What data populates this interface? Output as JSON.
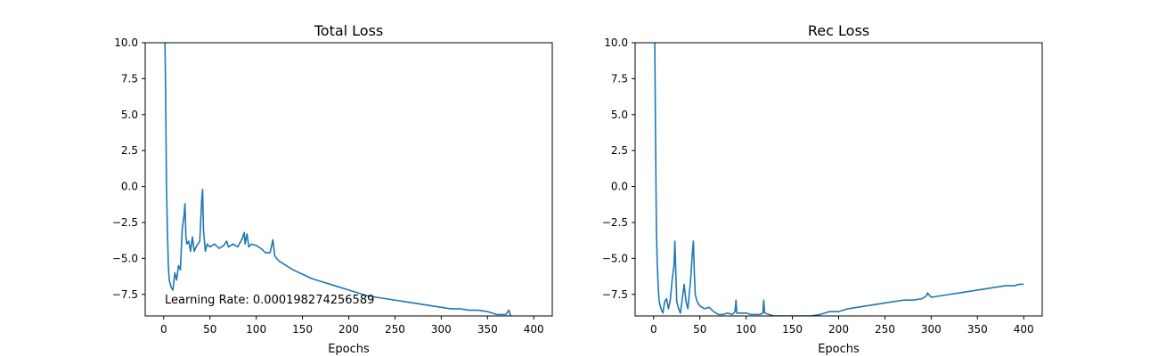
{
  "chart_data": [
    {
      "type": "line",
      "title": "Total Loss",
      "xlabel": "Epochs",
      "ylabel": "",
      "xlim": [
        -20,
        420
      ],
      "ylim": [
        -9,
        10
      ],
      "xticks": [
        0,
        50,
        100,
        150,
        200,
        250,
        300,
        350,
        400
      ],
      "yticks": [
        -7.5,
        -5.0,
        -2.5,
        0.0,
        2.5,
        5.0,
        7.5,
        10.0
      ],
      "xtick_labels": [
        "0",
        "50",
        "100",
        "150",
        "200",
        "250",
        "300",
        "350",
        "400"
      ],
      "ytick_labels": [
        "−7.5",
        "−5.0",
        "−2.5",
        "0.0",
        "2.5",
        "5.0",
        "7.5",
        "10.0"
      ],
      "grid": false,
      "line_color": "#1f77b4",
      "annotation": "Learning Rate: 0.000198274256589",
      "series": [
        {
          "x": [
            1,
            2,
            3,
            4,
            5,
            6,
            8,
            10,
            12,
            14,
            16,
            18,
            20,
            22,
            23,
            24,
            25,
            27,
            29,
            31,
            33,
            35,
            37,
            39,
            41,
            42,
            43,
            45,
            47,
            50,
            55,
            60,
            65,
            68,
            70,
            75,
            80,
            85,
            87,
            88,
            90,
            92,
            95,
            100,
            105,
            110,
            115,
            118,
            120,
            122,
            125,
            130,
            140,
            150,
            160,
            170,
            180,
            190,
            200,
            210,
            220,
            230,
            240,
            250,
            260,
            270,
            280,
            290,
            300,
            310,
            320,
            330,
            340,
            350,
            360,
            370,
            373,
            375,
            380
          ],
          "y": [
            12,
            7,
            0,
            -3,
            -5.5,
            -6.5,
            -7.0,
            -7.2,
            -6.0,
            -6.5,
            -5.5,
            -5.8,
            -3.0,
            -2.0,
            -1.2,
            -3.5,
            -4.0,
            -3.8,
            -4.5,
            -3.5,
            -4.5,
            -4.2,
            -4.0,
            -3.8,
            -1.0,
            -0.2,
            -3.0,
            -4.5,
            -4.0,
            -4.2,
            -4.0,
            -4.3,
            -4.1,
            -3.8,
            -4.2,
            -4.0,
            -4.2,
            -3.6,
            -3.2,
            -4.0,
            -3.3,
            -4.2,
            -4.0,
            -4.1,
            -4.3,
            -4.6,
            -4.6,
            -3.7,
            -4.8,
            -5.0,
            -5.2,
            -5.4,
            -5.8,
            -6.1,
            -6.4,
            -6.6,
            -6.8,
            -7.0,
            -7.2,
            -7.4,
            -7.6,
            -7.7,
            -7.8,
            -7.9,
            -8.0,
            -8.1,
            -8.2,
            -8.3,
            -8.4,
            -8.5,
            -8.5,
            -8.6,
            -8.6,
            -8.7,
            -8.9,
            -8.9,
            -8.6,
            -9.0,
            -9.1
          ]
        }
      ]
    },
    {
      "type": "line",
      "title": "Rec Loss",
      "xlabel": "Epochs",
      "ylabel": "",
      "xlim": [
        -20,
        420
      ],
      "ylim": [
        -9,
        10
      ],
      "xticks": [
        0,
        50,
        100,
        150,
        200,
        250,
        300,
        350,
        400
      ],
      "yticks": [
        -7.5,
        -5.0,
        -2.5,
        0.0,
        2.5,
        5.0,
        7.5,
        10.0
      ],
      "xtick_labels": [
        "0",
        "50",
        "100",
        "150",
        "200",
        "250",
        "300",
        "350",
        "400"
      ],
      "ytick_labels": [
        "−7.5",
        "−5.0",
        "−2.5",
        "0.0",
        "2.5",
        "5.0",
        "7.5",
        "10.0"
      ],
      "grid": false,
      "line_color": "#1f77b4",
      "series": [
        {
          "x": [
            1,
            2,
            3,
            4,
            5,
            6,
            8,
            10,
            12,
            14,
            16,
            18,
            20,
            22,
            23,
            24,
            25,
            27,
            29,
            31,
            33,
            35,
            37,
            40,
            42,
            43,
            44,
            45,
            47,
            50,
            55,
            60,
            65,
            70,
            75,
            80,
            85,
            88,
            89,
            90,
            95,
            100,
            105,
            110,
            115,
            118,
            119,
            120,
            125,
            130,
            140,
            150,
            160,
            170,
            180,
            190,
            200,
            210,
            220,
            230,
            240,
            250,
            260,
            270,
            280,
            290,
            295,
            296,
            300,
            310,
            320,
            330,
            340,
            350,
            360,
            370,
            380,
            390,
            395,
            400
          ],
          "y": [
            12,
            4,
            -3,
            -5.5,
            -7.0,
            -8.0,
            -8.5,
            -8.8,
            -8.0,
            -7.8,
            -8.5,
            -7.9,
            -6.5,
            -5.5,
            -3.8,
            -6.0,
            -8.0,
            -8.5,
            -8.8,
            -7.8,
            -6.8,
            -8.0,
            -8.5,
            -6.5,
            -4.5,
            -3.8,
            -6.0,
            -7.5,
            -8.0,
            -8.3,
            -8.5,
            -8.4,
            -8.7,
            -8.9,
            -8.9,
            -8.8,
            -8.9,
            -8.7,
            -7.9,
            -8.8,
            -8.8,
            -8.8,
            -8.9,
            -8.9,
            -8.9,
            -8.8,
            -7.9,
            -8.8,
            -8.9,
            -9.0,
            -9.0,
            -9.0,
            -9.0,
            -9.0,
            -8.9,
            -8.7,
            -8.7,
            -8.5,
            -8.4,
            -8.3,
            -8.2,
            -8.1,
            -8.0,
            -7.9,
            -7.9,
            -7.8,
            -7.6,
            -7.4,
            -7.7,
            -7.6,
            -7.5,
            -7.4,
            -7.3,
            -7.2,
            -7.1,
            -7.0,
            -6.9,
            -6.9,
            -6.8,
            -6.8
          ]
        }
      ]
    }
  ]
}
